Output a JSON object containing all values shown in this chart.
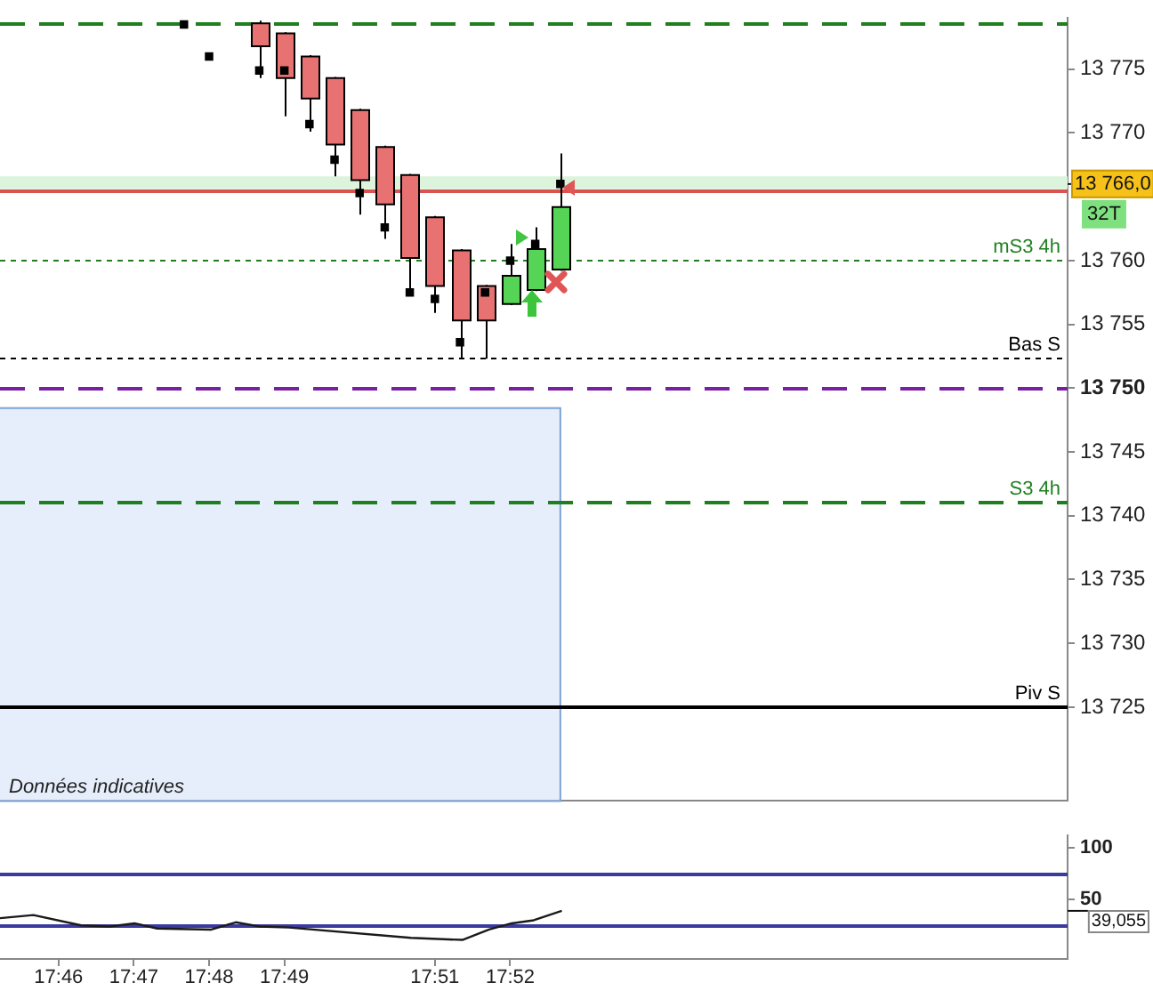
{
  "chart_data": [
    {
      "type": "candlestick",
      "tick_labels": "y",
      "grid": false,
      "legend": false,
      "marker": "square",
      "x": [
        17.81111,
        17.81667,
        17.82222,
        17.82778,
        17.83333,
        17.83889,
        17.84444,
        17.85,
        17.85556,
        17.86111,
        17.86667,
        17.87222,
        17.87778
      ],
      "ohlc": [
        [
          13778.6,
          13778.8,
          13774.3,
          13776.8
        ],
        [
          13777.8,
          13777.9,
          13771.3,
          13774.3
        ],
        [
          13776.0,
          13776.1,
          13770.1,
          13772.7
        ],
        [
          13774.3,
          13774.4,
          13766.6,
          13769.1
        ],
        [
          13771.8,
          13771.9,
          13763.6,
          13766.3
        ],
        [
          13768.9,
          13769.0,
          13761.7,
          13764.4
        ],
        [
          13766.7,
          13766.8,
          13757.5,
          13760.2
        ],
        [
          13763.4,
          13763.5,
          13755.9,
          13758.0
        ],
        [
          13760.8,
          13760.9,
          13752.3,
          13755.3
        ],
        [
          13758.0,
          13758.1,
          13752.3,
          13755.3
        ],
        [
          13756.6,
          13761.3,
          13756.5,
          13758.8
        ],
        [
          13757.7,
          13762.6,
          13757.6,
          13760.9
        ],
        [
          13759.3,
          13768.4,
          13759.2,
          13764.2
        ]
      ],
      "colors": [
        "#e87272",
        "#e87272",
        "#e87272",
        "#e87272",
        "#e87272",
        "#e87272",
        "#e87272",
        "#e87272",
        "#e87272",
        "#e87272",
        "#55d455",
        "#55d455",
        "#55d455"
      ],
      "series": [
        {
          "type": "scatter",
          "color": "#000000",
          "x": [
            17.79444,
            17.8,
            17.81111,
            17.81667,
            17.82222,
            17.82778,
            17.83333,
            17.83889,
            17.84444,
            17.85,
            17.85556,
            17.86111,
            17.86667,
            17.87222,
            17.87778
          ],
          "values": [
            13778.5,
            13776.0,
            13774.9,
            13774.9,
            13770.7,
            13767.9,
            13765.3,
            13762.6,
            13757.5,
            13757.0,
            13753.6,
            13757.5,
            13760.0,
            13761.3,
            13766.0
          ]
        }
      ],
      "xlim": [
        17.7537,
        17.9901
      ],
      "ylim": [
        13717.7,
        13779.0
      ],
      "yticks": [
        {
          "value": 13725,
          "label": "13 725"
        },
        {
          "value": 13730,
          "label": "13 730"
        },
        {
          "value": 13735,
          "label": "13 735"
        },
        {
          "value": 13740,
          "label": "13 740"
        },
        {
          "value": 13745,
          "label": "13 745"
        },
        {
          "value": 13750,
          "label": "13 750"
        },
        {
          "value": 13755,
          "label": "13 755"
        },
        {
          "value": 13760,
          "label": "13 760"
        },
        {
          "value": 13770,
          "label": "13 770"
        },
        {
          "value": 13775,
          "label": "13 775"
        }
      ],
      "bands": [
        {
          "axis": "y",
          "from": 13717.7,
          "to": 13748.5,
          "label": "Données indicatives",
          "color": "#e6eefc"
        },
        {
          "axis": "y",
          "from": 13765.6,
          "to": 13766.6,
          "color": "#dcf3dc"
        }
      ],
      "ref_lines": [
        {
          "axis": "y",
          "value": 13778.6,
          "color": "#1f7f1f",
          "line_style": "dashed"
        },
        {
          "axis": "y",
          "value": 13765.5,
          "color": "#d9534f",
          "line_style": "solid"
        },
        {
          "axis": "y",
          "value": 13760,
          "label": "mS3 4h",
          "color": "#1f7f1f",
          "line_style": "dotted"
        },
        {
          "axis": "y",
          "value": 13752.4,
          "label": "Bas S",
          "color": "#000000",
          "line_style": "dotted"
        },
        {
          "axis": "y",
          "value": 13750,
          "color": "#7a1fa2",
          "line_style": "dashed"
        },
        {
          "axis": "y",
          "value": 13741.1,
          "label": "S3 4h",
          "color": "#1f7f1f",
          "line_style": "dashed"
        },
        {
          "axis": "y",
          "value": 13725,
          "label": "Piv S",
          "color": "#000000",
          "line_style": "solid"
        }
      ],
      "annotations": [
        "13 766,0",
        "32T"
      ]
    },
    {
      "type": "line",
      "color": "#1a1a1a",
      "grid": false,
      "legend": false,
      "marker": "none",
      "x": [
        17.7537,
        17.7611,
        17.7717,
        17.778,
        17.7835,
        17.7885,
        17.8005,
        17.8059,
        17.8111,
        17.8177,
        17.8447,
        17.8561,
        17.862,
        17.867,
        17.8719,
        17.8781
      ],
      "values": [
        32,
        35,
        25,
        24,
        27,
        22,
        21,
        28,
        24,
        23,
        13,
        11,
        21,
        27,
        30,
        39.055
      ],
      "xlim": [
        17.7537,
        17.9901
      ],
      "xticks": [
        {
          "value": 17.76667,
          "label": "17:46"
        },
        {
          "value": 17.78333,
          "label": "17:47"
        },
        {
          "value": 17.8,
          "label": "17:48"
        },
        {
          "value": 17.81667,
          "label": "17:49"
        },
        {
          "value": 17.85,
          "label": "17:51"
        },
        {
          "value": 17.86667,
          "label": "17:52"
        }
      ],
      "ylim": [
        -7.4,
        111.8
      ],
      "yticks": [
        50,
        100
      ],
      "ref_lines": [
        {
          "axis": "y",
          "value": 75,
          "color": "#3c3a9e",
          "line_style": "solid"
        },
        {
          "axis": "y",
          "value": 25,
          "color": "#3c3a9e",
          "line_style": "solid"
        }
      ],
      "annotations": [
        "39,055"
      ]
    }
  ]
}
